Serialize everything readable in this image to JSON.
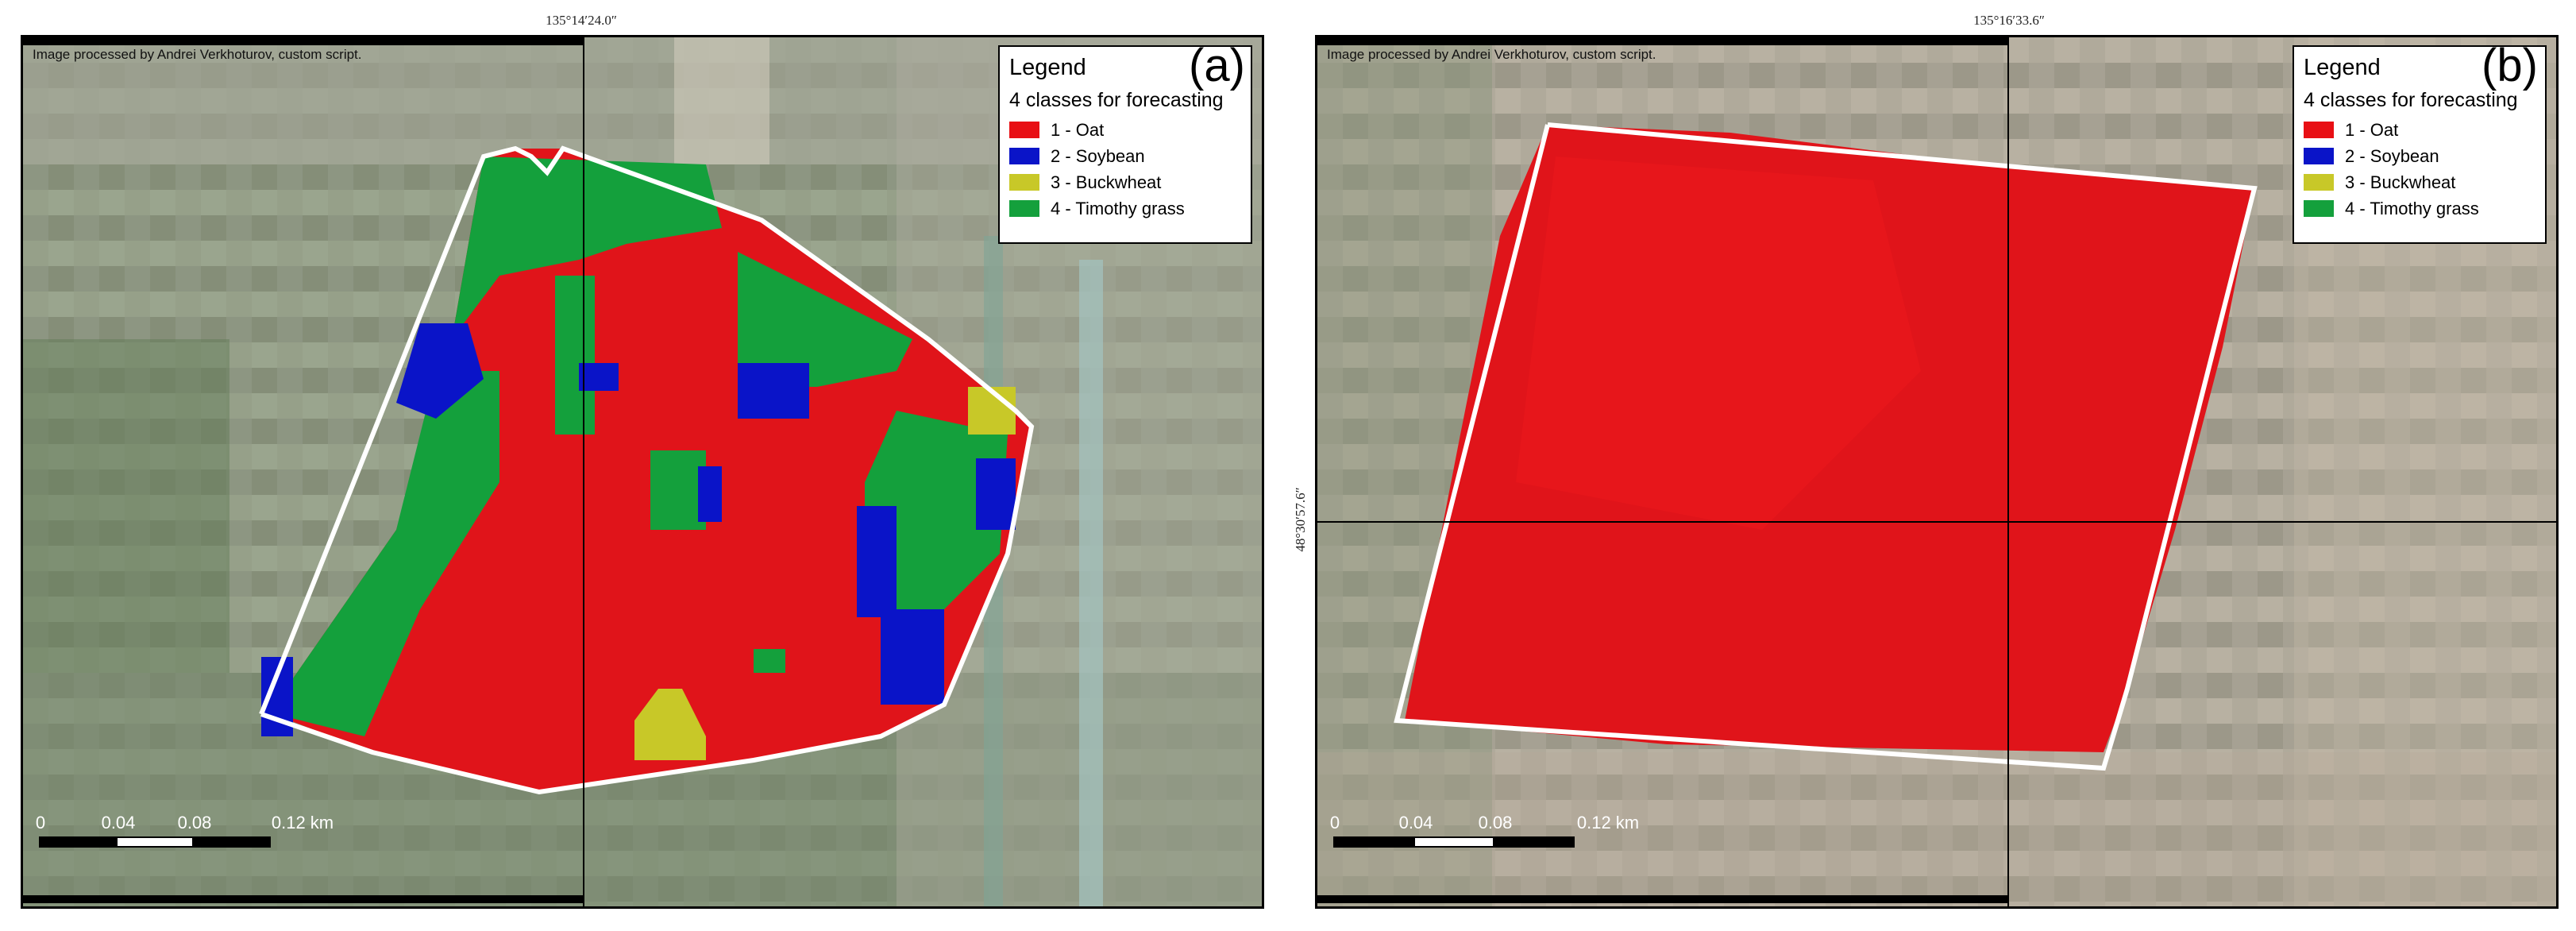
{
  "panels": [
    {
      "id": "a",
      "label": "(a)",
      "coord_top": "135°14′24.0″",
      "coord_left": "",
      "credit": "Image processed by Andrei Verkhoturov, custom script.",
      "legend": {
        "title": "Legend",
        "subtitle": "4 classes for forecasting",
        "items": [
          {
            "label": "1 - Oat",
            "color": "#e80f14"
          },
          {
            "label": "2 - Soybean",
            "color": "#0a14c8"
          },
          {
            "label": "3 - Buckwheat",
            "color": "#c8c828"
          },
          {
            "label": "4 - Timothy grass",
            "color": "#14a03c"
          }
        ]
      },
      "scale": {
        "ticks": [
          "0",
          "0.04",
          "0.08",
          "0.12 km"
        ]
      }
    },
    {
      "id": "b",
      "label": "(b)",
      "coord_top": "135°16′33.6″",
      "coord_left": "48°30′57.6″",
      "credit": "Image processed by Andrei Verkhoturov, custom script.",
      "legend": {
        "title": "Legend",
        "subtitle": "4 classes for forecasting",
        "items": [
          {
            "label": "1 - Oat",
            "color": "#e80f14"
          },
          {
            "label": "2 - Soybean",
            "color": "#0a14c8"
          },
          {
            "label": "3 - Buckwheat",
            "color": "#c8c828"
          },
          {
            "label": "4 - Timothy grass",
            "color": "#14a03c"
          }
        ]
      },
      "scale": {
        "ticks": [
          "0",
          "0.04",
          "0.08",
          "0.12 km"
        ]
      }
    }
  ]
}
